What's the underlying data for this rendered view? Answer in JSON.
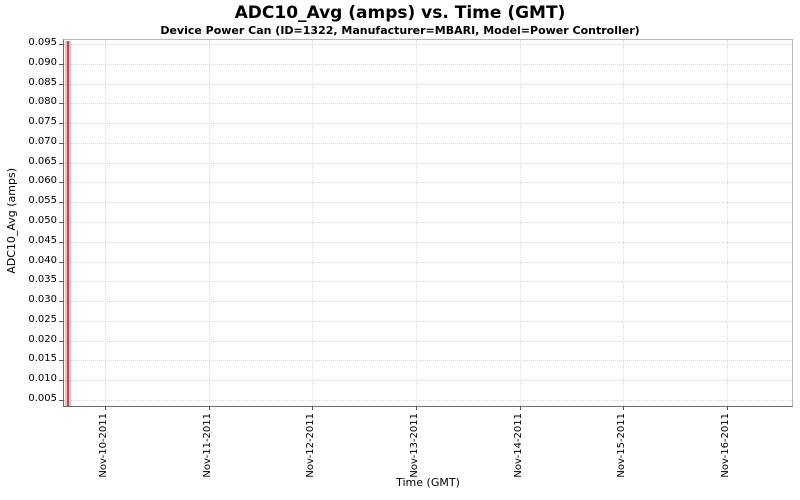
{
  "chart_data": {
    "type": "line",
    "title": "ADC10_Avg (amps) vs. Time (GMT)",
    "subtitle": "Device Power Can (ID=1322, Manufacturer=MBARI, Model=Power Controller)",
    "xlabel": "Time (GMT)",
    "ylabel": "ADC10_Avg (amps)",
    "x_tick_labels": [
      "Nov-10-2011",
      "Nov-11-2011",
      "Nov-12-2011",
      "Nov-13-2011",
      "Nov-14-2011",
      "Nov-15-2011",
      "Nov-16-2011"
    ],
    "y_tick_labels": [
      "0.005",
      "0.010",
      "0.015",
      "0.020",
      "0.025",
      "0.030",
      "0.035",
      "0.040",
      "0.045",
      "0.050",
      "0.055",
      "0.060",
      "0.065",
      "0.070",
      "0.075",
      "0.080",
      "0.085",
      "0.090",
      "0.095"
    ],
    "ylim_approx": [
      0.003,
      0.096
    ],
    "grid": "dotted gridlines at every x and y tick",
    "legend": "none",
    "background": "#ffffff",
    "series": [
      {
        "name": "ADC10_Avg",
        "line_color": "#c24848",
        "halo_color": "#f3bcbc",
        "visible_data": {
          "description": "single narrow vertical spike at the far left edge of the time window spanning the full visible y-range; no other data points visible",
          "x_fraction_of_plot_width": 0.005,
          "y_value_span": [
            0.005,
            0.096
          ]
        }
      }
    ],
    "colors": {
      "axis_line": "#6e6e6e",
      "plot_border": "#b6b6b6",
      "gridline": "#d9d9d9",
      "tick_mark": "#5a5a5a",
      "text": "#000000"
    }
  }
}
